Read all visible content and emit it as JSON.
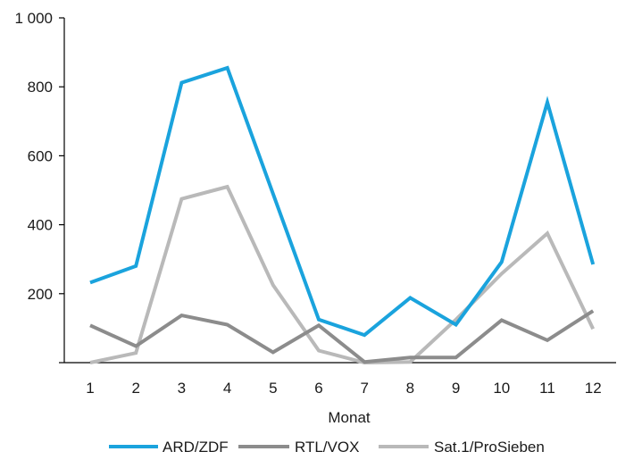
{
  "chart_data": {
    "type": "line",
    "title": "",
    "xlabel": "Monat",
    "ylabel": "",
    "categories": [
      "1",
      "2",
      "3",
      "4",
      "5",
      "6",
      "7",
      "8",
      "9",
      "10",
      "11",
      "12"
    ],
    "ylim": [
      0,
      1000
    ],
    "yticks": [
      0,
      200,
      400,
      600,
      800,
      1000
    ],
    "ytick_labels": [
      "",
      "200",
      "400",
      "600",
      "800",
      "1 000"
    ],
    "grid": false,
    "legend_position": "bottom",
    "series": [
      {
        "name": "ARD/ZDF",
        "color": "#1aa3dd",
        "values": [
          232,
          280,
          812,
          855,
          490,
          125,
          80,
          188,
          110,
          292,
          755,
          285
        ]
      },
      {
        "name": "RTL/VOX",
        "color": "#8c8c8c",
        "values": [
          108,
          48,
          137,
          110,
          30,
          108,
          2,
          15,
          15,
          123,
          65,
          150
        ]
      },
      {
        "name": "Sat.1/ProSieben",
        "color": "#b9b9b9",
        "values": [
          0,
          28,
          475,
          510,
          225,
          35,
          0,
          2,
          125,
          258,
          375,
          98
        ]
      }
    ]
  }
}
